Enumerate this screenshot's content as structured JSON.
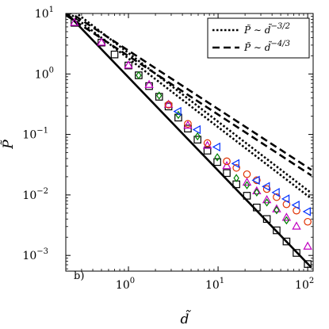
{
  "chart_data": {
    "type": "scatter",
    "xscale": "log",
    "yscale": "log",
    "xlim": [
      0.2,
      115
    ],
    "ylim": [
      0.00055,
      10
    ],
    "xlabel": "d̃",
    "ylabel": "P̃",
    "panel_label": "b)",
    "x_ticks": [
      {
        "value": 1,
        "base": "10",
        "exp": "0"
      },
      {
        "value": 10,
        "base": "10",
        "exp": "1"
      },
      {
        "value": 100,
        "base": "10",
        "exp": "2"
      }
    ],
    "y_ticks": [
      {
        "value": 0.001,
        "base": "10",
        "exp": "−3"
      },
      {
        "value": 0.01,
        "base": "10",
        "exp": "−2"
      },
      {
        "value": 0.1,
        "base": "10",
        "exp": "−1"
      },
      {
        "value": 1,
        "base": "10",
        "exp": "0"
      },
      {
        "value": 10,
        "base": "10",
        "exp": "1"
      }
    ],
    "legend": {
      "position": "top-right",
      "entries": [
        {
          "style": "dotted",
          "text": "P̃ ∼ d̃",
          "exp": "−3/2"
        },
        {
          "style": "dashed",
          "text": "P̃ ∼ d̃",
          "exp": "−4/3"
        }
      ]
    },
    "lines": [
      {
        "style": "dotted",
        "color": "#000000",
        "points": [
          [
            0.2,
            11.2
          ],
          [
            110,
            0.0087
          ]
        ]
      },
      {
        "style": "dotted",
        "color": "#000000",
        "points": [
          [
            0.2,
            13.8
          ],
          [
            110,
            0.0107
          ]
        ]
      },
      {
        "style": "dashed",
        "color": "#000000",
        "points": [
          [
            0.2,
            9.4
          ],
          [
            110,
            0.021
          ]
        ]
      },
      {
        "style": "dashed",
        "color": "#000000",
        "points": [
          [
            0.2,
            11.5
          ],
          [
            110,
            0.026
          ]
        ]
      },
      {
        "style": "solid",
        "color": "#000000",
        "points": [
          [
            0.2,
            10.5
          ],
          [
            110,
            0.00063
          ]
        ]
      }
    ],
    "series": [
      {
        "marker": "square",
        "color": "#000000",
        "x": [
          0.25,
          0.5,
          0.7,
          1.0,
          1.3,
          1.7,
          2.2,
          2.8,
          3.6,
          4.6,
          5.9,
          7.6,
          9.8,
          12.5,
          16,
          21,
          27,
          35,
          45,
          58,
          75,
          100
        ],
        "y": [
          7.0,
          3.3,
          2.1,
          1.38,
          0.95,
          0.63,
          0.42,
          0.29,
          0.19,
          0.125,
          0.082,
          0.054,
          0.035,
          0.023,
          0.015,
          0.0097,
          0.0062,
          0.004,
          0.0026,
          0.0017,
          0.0011,
          0.00072
        ]
      },
      {
        "marker": "triangle-up",
        "color": "#c000c0",
        "x": [
          0.25,
          0.5,
          1.0,
          1.7,
          2.8,
          4.6,
          7.6,
          12.5,
          21,
          27,
          35,
          45,
          58,
          75,
          100
        ],
        "y": [
          7.0,
          3.3,
          1.38,
          0.66,
          0.31,
          0.14,
          0.065,
          0.03,
          0.016,
          0.0115,
          0.0082,
          0.0058,
          0.0042,
          0.003,
          0.0014
        ]
      },
      {
        "marker": "diamond",
        "color": "#008000",
        "x": [
          1.3,
          2.2,
          3.6,
          5.9,
          9.8,
          16,
          21,
          27,
          35,
          45,
          58
        ],
        "y": [
          0.95,
          0.44,
          0.21,
          0.093,
          0.042,
          0.019,
          0.0145,
          0.011,
          0.0075,
          0.0056,
          0.0038
        ]
      },
      {
        "marker": "circle",
        "color": "#e03000",
        "x": [
          2.8,
          4.6,
          7.6,
          12.5,
          16,
          21,
          27,
          35,
          45,
          58,
          75,
          100
        ],
        "y": [
          0.31,
          0.15,
          0.072,
          0.036,
          0.028,
          0.022,
          0.0175,
          0.0125,
          0.0092,
          0.007,
          0.0055,
          0.0036
        ]
      },
      {
        "marker": "triangle-left",
        "color": "#0030ff",
        "x": [
          3.6,
          5.9,
          9.8,
          16,
          27,
          35,
          45,
          58,
          75,
          100
        ],
        "y": [
          0.24,
          0.12,
          0.062,
          0.033,
          0.0175,
          0.0138,
          0.011,
          0.0086,
          0.0068,
          0.0053
        ]
      }
    ]
  }
}
